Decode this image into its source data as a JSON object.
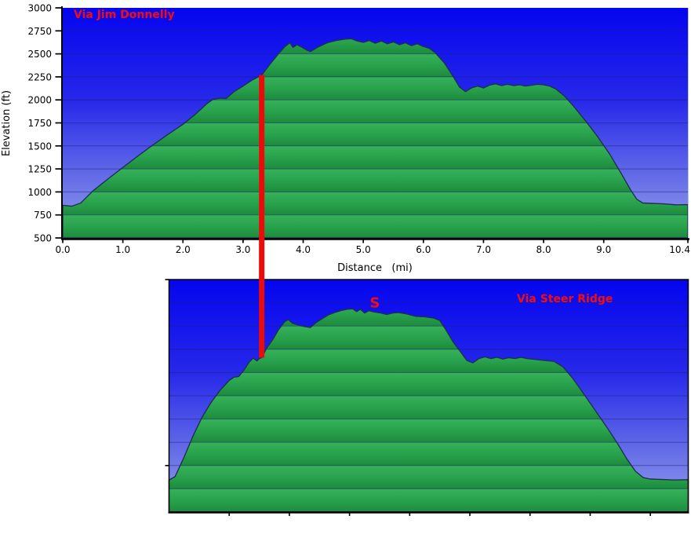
{
  "figure": {
    "description": "Two stacked elevation profile charts of routes to the same summit, connected by a red line marking the shared trail junction",
    "background": "#ffffff"
  },
  "palette": {
    "sky_top": "#0505ef",
    "sky_upper_mid": "#2628e9",
    "sky_lower_mid": "#6169e7",
    "sky_bottom": "#99a2ec",
    "land_light": "#36b259",
    "land_mid": "#27a04b",
    "land_dark": "#1d8a3d",
    "terrain_outline": "#1e3152",
    "gridline": "#1f1f7a",
    "axis": "#000000",
    "marker_red": "#ec0b0b",
    "label_red": "#f50c0c",
    "right_edge_light": "#b9c6da"
  },
  "chart_data": [
    {
      "type": "area",
      "title": "Via Jim Donnelly",
      "xlabel": "Distance   (mi)",
      "ylabel": "Elevation (ft)",
      "xlim": [
        0,
        10.4
      ],
      "ylim": [
        500,
        3000
      ],
      "grid": true,
      "x_ticks": {
        "values": [
          0,
          1,
          2,
          3,
          4,
          5,
          6,
          7,
          8,
          9,
          10.4
        ],
        "labels": [
          "0.0",
          "1.0",
          "2.0",
          "3.0",
          "4.0",
          "5.0",
          "6.0",
          "7.0",
          "8.0",
          "9.0",
          "10.4"
        ]
      },
      "y_ticks": {
        "values": [
          3000,
          2750,
          2500,
          2250,
          2000,
          1750,
          1500,
          1250,
          1000,
          750,
          500
        ],
        "labels": [
          "3000",
          "2750",
          "2500",
          "2250",
          "2000",
          "1750",
          "1500",
          "1250",
          "1000",
          "750",
          "500"
        ]
      },
      "x_mi": [
        0.0,
        0.15,
        0.3,
        0.5,
        0.75,
        1.0,
        1.25,
        1.5,
        1.75,
        2.0,
        2.2,
        2.4,
        2.5,
        2.62,
        2.72,
        2.85,
        3.0,
        3.15,
        3.31,
        3.45,
        3.6,
        3.7,
        3.78,
        3.83,
        3.9,
        3.97,
        4.05,
        4.12,
        4.25,
        4.4,
        4.55,
        4.7,
        4.8,
        4.9,
        5.0,
        5.1,
        5.2,
        5.3,
        5.4,
        5.5,
        5.6,
        5.7,
        5.8,
        5.9,
        6.0,
        6.1,
        6.2,
        6.35,
        6.5,
        6.6,
        6.7,
        6.8,
        6.9,
        7.0,
        7.1,
        7.2,
        7.3,
        7.4,
        7.5,
        7.6,
        7.7,
        7.8,
        7.9,
        8.0,
        8.1,
        8.2,
        8.35,
        8.5,
        8.7,
        8.9,
        9.1,
        9.3,
        9.45,
        9.55,
        9.65,
        9.8,
        10.0,
        10.2,
        10.4
      ],
      "elevation_ft": [
        855,
        845,
        880,
        1010,
        1140,
        1265,
        1390,
        1510,
        1625,
        1735,
        1840,
        1960,
        2005,
        2020,
        2015,
        2090,
        2150,
        2215,
        2270,
        2390,
        2510,
        2580,
        2620,
        2570,
        2600,
        2575,
        2545,
        2525,
        2575,
        2620,
        2645,
        2660,
        2665,
        2640,
        2625,
        2645,
        2615,
        2640,
        2610,
        2630,
        2600,
        2620,
        2590,
        2610,
        2580,
        2560,
        2510,
        2400,
        2250,
        2140,
        2090,
        2130,
        2150,
        2130,
        2160,
        2175,
        2155,
        2170,
        2155,
        2165,
        2150,
        2160,
        2170,
        2165,
        2150,
        2120,
        2040,
        1930,
        1770,
        1600,
        1410,
        1190,
        1020,
        920,
        880,
        875,
        870,
        860,
        862
      ]
    },
    {
      "type": "area",
      "title": "Via Steer Ridge",
      "xlim": [
        0,
        8.63
      ],
      "ylim": [
        500,
        3000
      ],
      "grid": true,
      "x_tick_values": [
        1,
        2,
        3,
        4,
        5,
        6,
        7,
        8
      ],
      "y_tick_values": [
        3000,
        1000
      ],
      "y_gridlines": [
        2750,
        2500,
        2250,
        2000,
        1750,
        1500,
        1250,
        1000,
        750
      ],
      "annotation": {
        "label": "S",
        "x_mi": 3.42,
        "elevation_ft": 2700
      },
      "x_mi": [
        0.0,
        0.1,
        0.25,
        0.4,
        0.55,
        0.7,
        0.85,
        1.0,
        1.08,
        1.16,
        1.25,
        1.33,
        1.4,
        1.46,
        1.5,
        1.54,
        1.62,
        1.72,
        1.82,
        1.92,
        1.98,
        2.05,
        2.15,
        2.25,
        2.35,
        2.45,
        2.55,
        2.65,
        2.75,
        2.85,
        2.95,
        3.05,
        3.12,
        3.18,
        3.25,
        3.32,
        3.42,
        3.52,
        3.62,
        3.72,
        3.82,
        3.95,
        4.1,
        4.25,
        4.4,
        4.5,
        4.6,
        4.72,
        4.85,
        4.95,
        5.05,
        5.15,
        5.25,
        5.35,
        5.45,
        5.55,
        5.65,
        5.75,
        5.85,
        5.95,
        6.1,
        6.25,
        6.4,
        6.55,
        6.7,
        6.85,
        7.0,
        7.15,
        7.3,
        7.45,
        7.6,
        7.75,
        7.88,
        8.0,
        8.2,
        8.4,
        8.63
      ],
      "elevation_ft": [
        845,
        880,
        1090,
        1320,
        1520,
        1680,
        1810,
        1915,
        1950,
        1958,
        2030,
        2110,
        2155,
        2125,
        2150,
        2160,
        2260,
        2350,
        2460,
        2545,
        2570,
        2530,
        2510,
        2495,
        2485,
        2540,
        2580,
        2620,
        2645,
        2665,
        2680,
        2685,
        2655,
        2680,
        2640,
        2665,
        2650,
        2640,
        2625,
        2640,
        2645,
        2630,
        2605,
        2600,
        2585,
        2560,
        2460,
        2330,
        2220,
        2130,
        2105,
        2150,
        2170,
        2150,
        2165,
        2145,
        2160,
        2150,
        2165,
        2150,
        2140,
        2130,
        2120,
        2060,
        1945,
        1810,
        1670,
        1530,
        1390,
        1240,
        1080,
        940,
        870,
        855,
        850,
        845,
        848
      ]
    }
  ],
  "junction_marker": {
    "description": "red vertical line linking the same trail junction on both profiles",
    "x_mi_on_jim_donnelly": 3.31,
    "x_mi_on_steer_ridge": 1.54
  }
}
